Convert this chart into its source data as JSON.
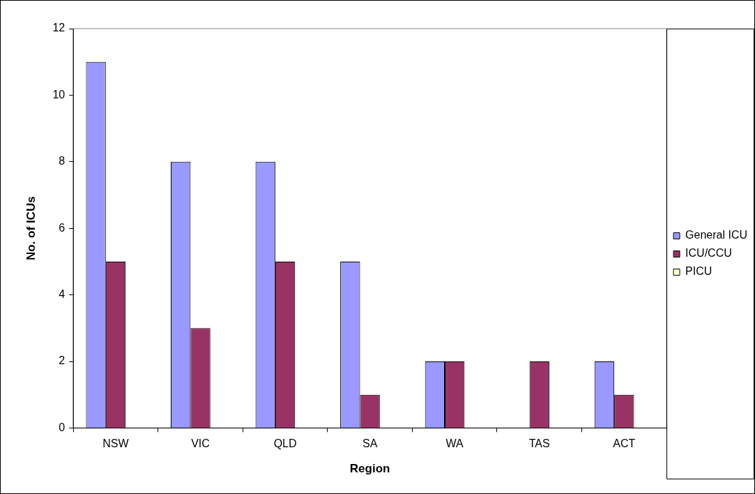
{
  "chart_data": {
    "type": "bar",
    "xlabel": "Region",
    "ylabel": "No. of ICUs",
    "categories": [
      "NSW",
      "VIC",
      "QLD",
      "SA",
      "WA",
      "TAS",
      "ACT"
    ],
    "series": [
      {
        "name": "General ICU",
        "color": "#9999ff",
        "values": [
          11,
          8,
          8,
          5,
          2,
          0,
          2
        ]
      },
      {
        "name": "ICU/CCU",
        "color": "#993366",
        "values": [
          5,
          3,
          5,
          1,
          2,
          2,
          1
        ]
      },
      {
        "name": "PICU",
        "color": "#ffffcc",
        "values": [
          0,
          0,
          0,
          0,
          0,
          0,
          0
        ]
      }
    ],
    "ylim": [
      0,
      12
    ],
    "yticks": [
      0,
      2,
      4,
      6,
      8,
      10,
      12
    ],
    "grid": false,
    "legend": "right"
  }
}
